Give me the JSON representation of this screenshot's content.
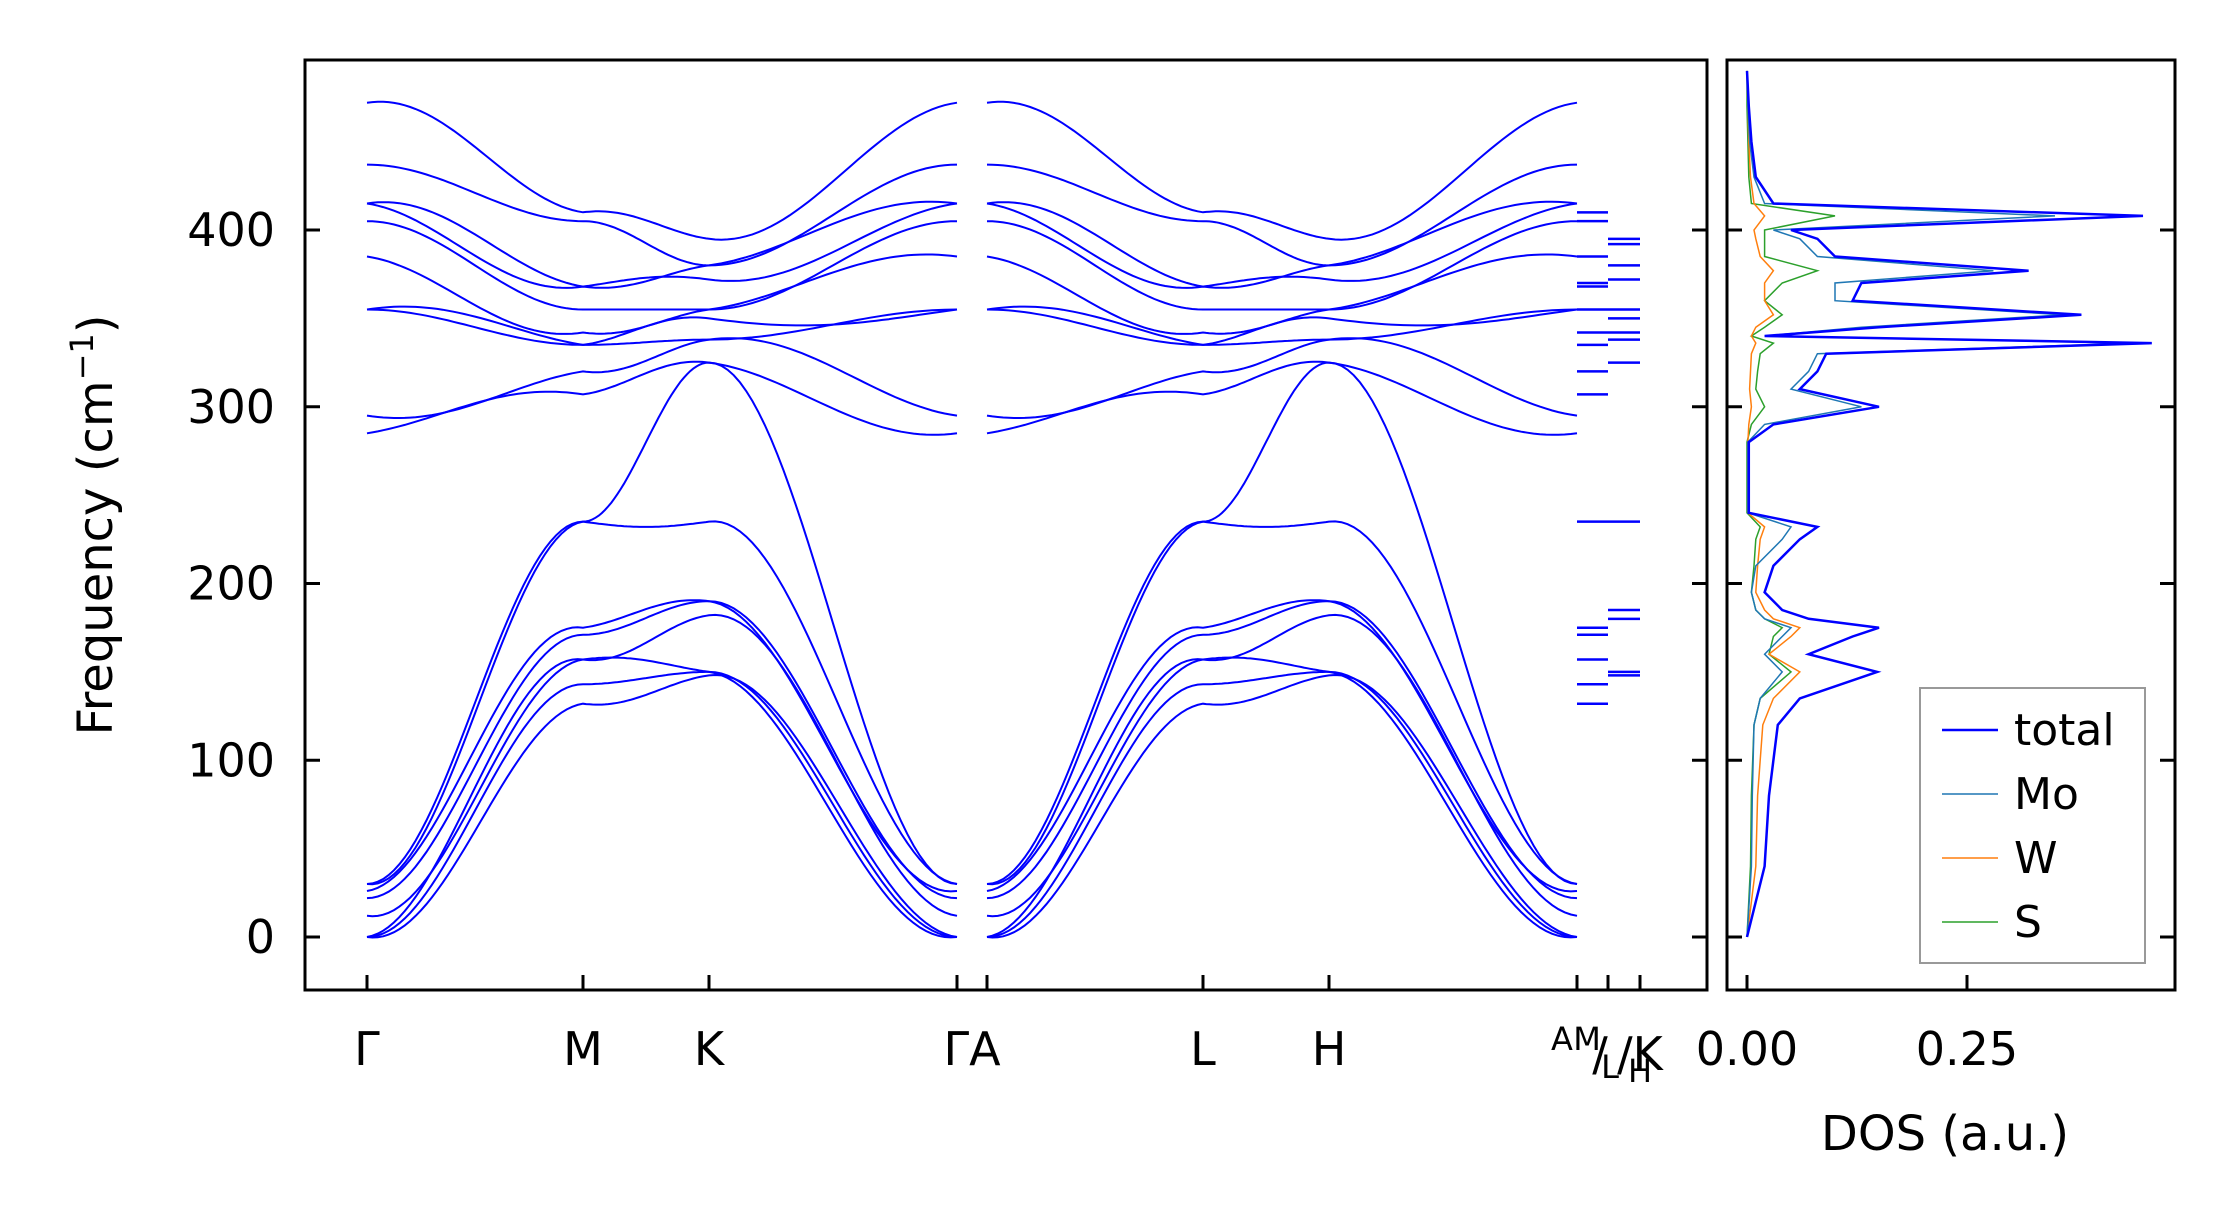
{
  "chart_data": [
    {
      "type": "line",
      "ylabel_main": "Frequency (cm",
      "ylabel_sup": "−1",
      "ylabel_end": ")",
      "ylim": [
        -30,
        495
      ],
      "yticks": [
        0,
        100,
        200,
        300,
        400
      ],
      "ytick_labels": [
        "0",
        "100",
        "200",
        "300",
        "400"
      ],
      "xticks": [
        "Γ",
        "M",
        "K",
        "Γ",
        "A",
        "L",
        "H",
        "A",
        "M",
        "L",
        "K",
        "H"
      ],
      "xtick_labels": [
        "Γ",
        "M",
        "K",
        "ΓA",
        "L",
        "H",
        "A",
        "M",
        "/",
        "L",
        "/K",
        "H"
      ],
      "color": "#0000ff",
      "segment_endpoints": {
        "first_gamma": [
          0,
          0,
          12,
          22,
          26,
          30,
          285,
          295,
          355,
          385,
          405,
          415,
          437,
          472
        ],
        "first_m": [
          132,
          143,
          157,
          171,
          175,
          235,
          307,
          320,
          335,
          342,
          355,
          368,
          405,
          410
        ],
        "first_k": [
          148,
          150,
          182,
          190,
          235,
          325,
          338,
          350,
          355,
          372,
          380,
          395
        ]
      },
      "side_levels_m": [
        132,
        143,
        157,
        171,
        175,
        235,
        307,
        320,
        335,
        342,
        355,
        368,
        370,
        385,
        405,
        410
      ],
      "side_levels_lk": [
        148,
        150,
        180,
        185,
        235,
        325,
        338,
        342,
        350,
        355,
        372,
        380,
        392,
        395
      ]
    },
    {
      "type": "line",
      "xlabel": "DOS (a.u.)",
      "xticks": [
        0.0,
        0.25
      ],
      "xtick_labels": [
        "0.00",
        "0.25"
      ],
      "xlim": [
        -0.02,
        0.48
      ],
      "legend_placement": "lower-right",
      "series": [
        {
          "name": "total",
          "color": "#0000ff",
          "y": [
            0,
            40,
            80,
            120,
            135,
            150,
            160,
            170,
            175,
            180,
            185,
            195,
            210,
            225,
            232,
            240,
            280,
            290,
            300,
            310,
            320,
            330,
            336,
            340,
            345,
            352,
            360,
            370,
            377,
            385,
            395,
            400,
            408,
            415,
            430,
            450,
            470,
            490
          ],
          "values": [
            0.0,
            0.02,
            0.025,
            0.035,
            0.06,
            0.148,
            0.07,
            0.12,
            0.15,
            0.07,
            0.04,
            0.02,
            0.03,
            0.06,
            0.08,
            0.002,
            0.002,
            0.03,
            0.15,
            0.06,
            0.08,
            0.09,
            0.46,
            0.02,
            0.15,
            0.38,
            0.12,
            0.13,
            0.32,
            0.1,
            0.08,
            0.05,
            0.45,
            0.03,
            0.01,
            0.005,
            0.002,
            0.0
          ]
        },
        {
          "name": "Mo",
          "color": "#1f77b4",
          "y": [
            0,
            40,
            80,
            120,
            135,
            150,
            160,
            170,
            175,
            180,
            185,
            195,
            210,
            225,
            232,
            240,
            280,
            290,
            300,
            310,
            320,
            330,
            336,
            340,
            345,
            352,
            360,
            370,
            377,
            385,
            395,
            400,
            408,
            415,
            430,
            450,
            470,
            490
          ],
          "values": [
            0.0,
            0.005,
            0.006,
            0.008,
            0.015,
            0.04,
            0.02,
            0.04,
            0.05,
            0.02,
            0.01,
            0.005,
            0.01,
            0.04,
            0.05,
            0.001,
            0.001,
            0.02,
            0.13,
            0.05,
            0.07,
            0.08,
            0.44,
            0.02,
            0.13,
            0.36,
            0.1,
            0.1,
            0.28,
            0.08,
            0.06,
            0.03,
            0.35,
            0.02,
            0.008,
            0.003,
            0.001,
            0.0
          ]
        },
        {
          "name": "W",
          "color": "#ff7f0e",
          "y": [
            0,
            40,
            80,
            120,
            135,
            150,
            160,
            170,
            175,
            180,
            185,
            195,
            210,
            225,
            232,
            240,
            280,
            290,
            300,
            310,
            320,
            330,
            336,
            340,
            345,
            352,
            360,
            370,
            377,
            385,
            395,
            400,
            408,
            415,
            430,
            450,
            470,
            490
          ],
          "values": [
            0.0,
            0.01,
            0.012,
            0.018,
            0.03,
            0.06,
            0.025,
            0.05,
            0.06,
            0.03,
            0.02,
            0.01,
            0.012,
            0.015,
            0.02,
            0.001,
            0.001,
            0.002,
            0.005,
            0.003,
            0.004,
            0.005,
            0.01,
            0.005,
            0.01,
            0.03,
            0.02,
            0.02,
            0.03,
            0.015,
            0.01,
            0.008,
            0.02,
            0.008,
            0.004,
            0.002,
            0.001,
            0.0
          ]
        },
        {
          "name": "S",
          "color": "#2ca02c",
          "y": [
            0,
            40,
            80,
            120,
            135,
            150,
            160,
            170,
            175,
            180,
            185,
            195,
            210,
            225,
            232,
            240,
            280,
            290,
            300,
            310,
            320,
            330,
            336,
            340,
            345,
            352,
            360,
            370,
            377,
            385,
            395,
            400,
            408,
            415,
            430,
            450,
            470,
            490
          ],
          "values": [
            0.0,
            0.004,
            0.005,
            0.008,
            0.015,
            0.05,
            0.025,
            0.03,
            0.04,
            0.02,
            0.01,
            0.005,
            0.008,
            0.01,
            0.015,
            0.0,
            0.0,
            0.005,
            0.02,
            0.01,
            0.012,
            0.015,
            0.03,
            0.005,
            0.02,
            0.04,
            0.02,
            0.04,
            0.08,
            0.02,
            0.02,
            0.02,
            0.1,
            0.005,
            0.002,
            0.001,
            0.0,
            0.0
          ]
        }
      ]
    }
  ]
}
